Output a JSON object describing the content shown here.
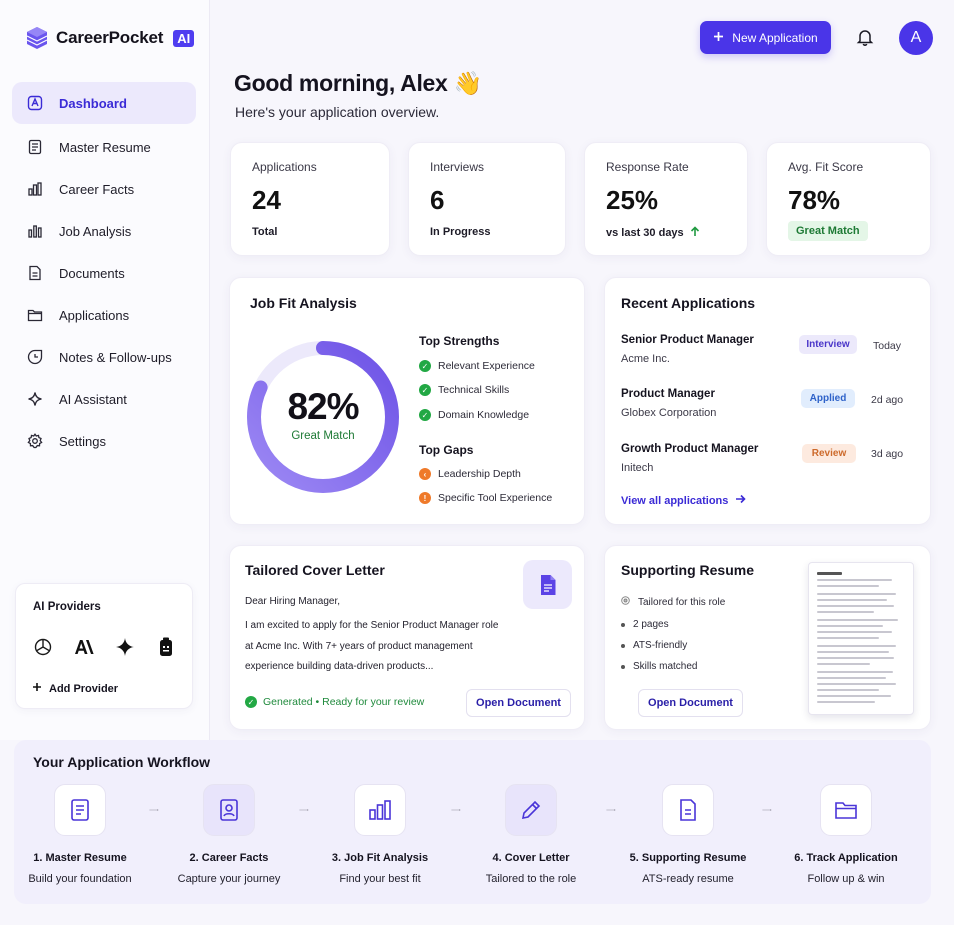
{
  "brand": {
    "name": "CareerPocket",
    "badge": "AI"
  },
  "sidebar": {
    "items": [
      {
        "label": "Dashboard",
        "icon": "dashboard-icon"
      },
      {
        "label": "Master Resume",
        "icon": "resume-icon"
      },
      {
        "label": "Career Facts",
        "icon": "career-facts-icon"
      },
      {
        "label": "Job Analysis",
        "icon": "bar-chart-icon"
      },
      {
        "label": "Documents",
        "icon": "document-icon"
      },
      {
        "label": "Applications",
        "icon": "folder-icon"
      },
      {
        "label": "Notes & Follow-ups",
        "icon": "notes-icon"
      },
      {
        "label": "AI Assistant",
        "icon": "sparkle-icon"
      },
      {
        "label": "Settings",
        "icon": "gear-icon"
      }
    ]
  },
  "providers": {
    "title": "AI Providers",
    "add_label": "Add Provider"
  },
  "header": {
    "new_application": "New Application",
    "avatar_initial": "A"
  },
  "greeting": {
    "title": "Good morning, Alex 👋",
    "subtitle": "Here's your application overview."
  },
  "stats": [
    {
      "label": "Applications",
      "value": "24",
      "sub": "Total"
    },
    {
      "label": "Interviews",
      "value": "6",
      "sub": "In Progress"
    },
    {
      "label": "Response Rate",
      "value": "25%",
      "sub": "vs last 30 days"
    },
    {
      "label": "Avg. Fit Score",
      "value": "78%",
      "sub": "Great Match"
    }
  ],
  "job_fit": {
    "title": "Job Fit Analysis",
    "score": "82%",
    "score_fraction": 0.82,
    "score_label": "Great Match",
    "strengths_title": "Top Strengths",
    "strengths": [
      "Relevant Experience",
      "Technical Skills",
      "Domain Knowledge"
    ],
    "gaps_title": "Top Gaps",
    "gaps": [
      "Leadership Depth",
      "Specific Tool Experience"
    ]
  },
  "recent": {
    "title": "Recent Applications",
    "items": [
      {
        "role": "Senior Product Manager",
        "company": "Acme Inc.",
        "status": "Interview",
        "time": "Today"
      },
      {
        "role": "Product Manager",
        "company": "Globex Corporation",
        "status": "Applied",
        "time": "2d ago"
      },
      {
        "role": "Growth Product Manager",
        "company": "Initech",
        "status": "Review",
        "time": "3d ago"
      }
    ],
    "view_all": "View all applications"
  },
  "cover_letter": {
    "title": "Tailored Cover Letter",
    "lines": [
      "Dear Hiring Manager,",
      "I am excited to apply for the Senior Product Manager role",
      "at Acme Inc. With 7+ years of product management",
      "experience building data-driven products..."
    ],
    "status": "Generated • Ready for your review",
    "button": "Open Document"
  },
  "supporting_resume": {
    "title": "Supporting Resume",
    "items": [
      "Tailored for this role",
      "2 pages",
      "ATS-friendly",
      "Skills matched"
    ],
    "button": "Open Document"
  },
  "workflow": {
    "title": "Your Application Workflow",
    "steps": [
      {
        "name": "1. Master Resume",
        "desc": "Build your foundation"
      },
      {
        "name": "2. Career Facts",
        "desc": "Capture your journey"
      },
      {
        "name": "3. Job Fit Analysis",
        "desc": "Find your best fit"
      },
      {
        "name": "4. Cover Letter",
        "desc": "Tailored to the role"
      },
      {
        "name": "5. Supporting Resume",
        "desc": "ATS-ready resume"
      },
      {
        "name": "6. Track Application",
        "desc": "Follow up & win"
      }
    ]
  },
  "colors": {
    "accent": "#4a35e8",
    "success": "#22a844",
    "warning": "#ef7a2a"
  }
}
